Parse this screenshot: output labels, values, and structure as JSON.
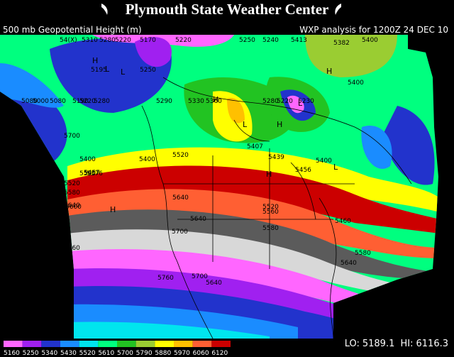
{
  "header": {
    "title": "Plymouth State Weather Center",
    "product": "500 mb Geopotential Height (m)",
    "valid": "WXP analysis for 1200Z 24 DEC 10"
  },
  "map": {
    "units": "m",
    "contour_labels": [
      "54(X)",
      "5310",
      "5280",
      "5220",
      "5170",
      "5220",
      "5250",
      "5240",
      "5413",
      "5382",
      "5400",
      "5195",
      "5250",
      "5400",
      "5080",
      "5000",
      "5080",
      "5190",
      "5220",
      "5280",
      "5290",
      "5330",
      "5360",
      "5280",
      "5220",
      "5230",
      "5700",
      "5400",
      "5407",
      "5439",
      "5456",
      "5400",
      "5400",
      "5500",
      "5520",
      "5457",
      "5376",
      "5520",
      "5640",
      "5580",
      "5600",
      "5640",
      "5640",
      "5560",
      "5520",
      "5700",
      "5580",
      "5460",
      "5760",
      "5580",
      "5760",
      "5700",
      "5640",
      "5640"
    ],
    "center_markers": [
      "H",
      "L",
      "H",
      "H",
      "L",
      "H",
      "L",
      "L",
      "H",
      "L",
      "H"
    ],
    "colors": {
      "c5160": "#ff66ff",
      "c5250": "#a020f0",
      "c5340": "#2233cc",
      "c5430": "#1a8cff",
      "c5520": "#00e5ee",
      "c5610": "#00ff7f",
      "c5700": "#22c322",
      "c5790": "#9acd32",
      "c5880": "#ffff00",
      "c5970": "#ffc000",
      "c6060": "#ff5f33",
      "c6120": "#cc0000",
      "grey_light": "#d8d8d8",
      "grey_mid": "#9b9b9b",
      "grey_dark": "#5b5b5b"
    }
  },
  "legend": {
    "labels": [
      "5160",
      "5250",
      "5340",
      "5430",
      "5520",
      "5610",
      "5700",
      "5790",
      "5880",
      "5970",
      "6060",
      "6120"
    ],
    "swatches": [
      "#ff66ff",
      "#a020f0",
      "#2233cc",
      "#1a8cff",
      "#00e5ee",
      "#00ff7f",
      "#22c322",
      "#9acd32",
      "#ffff00",
      "#ffc000",
      "#ff5f33",
      "#cc0000"
    ]
  },
  "stats": {
    "lo_label": "LO:",
    "lo_value": "5189.1",
    "hi_label": "HI:",
    "hi_value": "6116.3"
  }
}
